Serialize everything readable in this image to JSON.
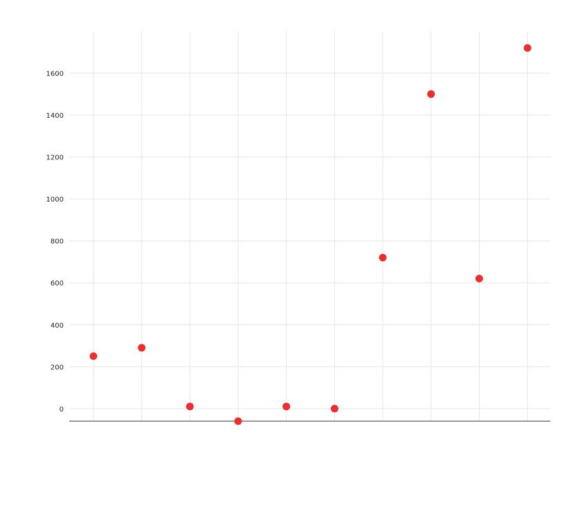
{
  "chart_data": {
    "type": "scatter",
    "title": "",
    "xlabel": "",
    "ylabel": "",
    "categories": [
      "",
      "",
      "",
      "",
      "",
      "",
      "",
      "",
      "",
      ""
    ],
    "values": [
      250,
      290,
      10,
      -60,
      10,
      0,
      720,
      1500,
      620,
      1720
    ],
    "ylim": [
      -60,
      1800
    ],
    "yticks": [
      0,
      200,
      400,
      600,
      800,
      1000,
      1200,
      1400,
      1600
    ],
    "grid": true,
    "point_color": "#e83030"
  }
}
